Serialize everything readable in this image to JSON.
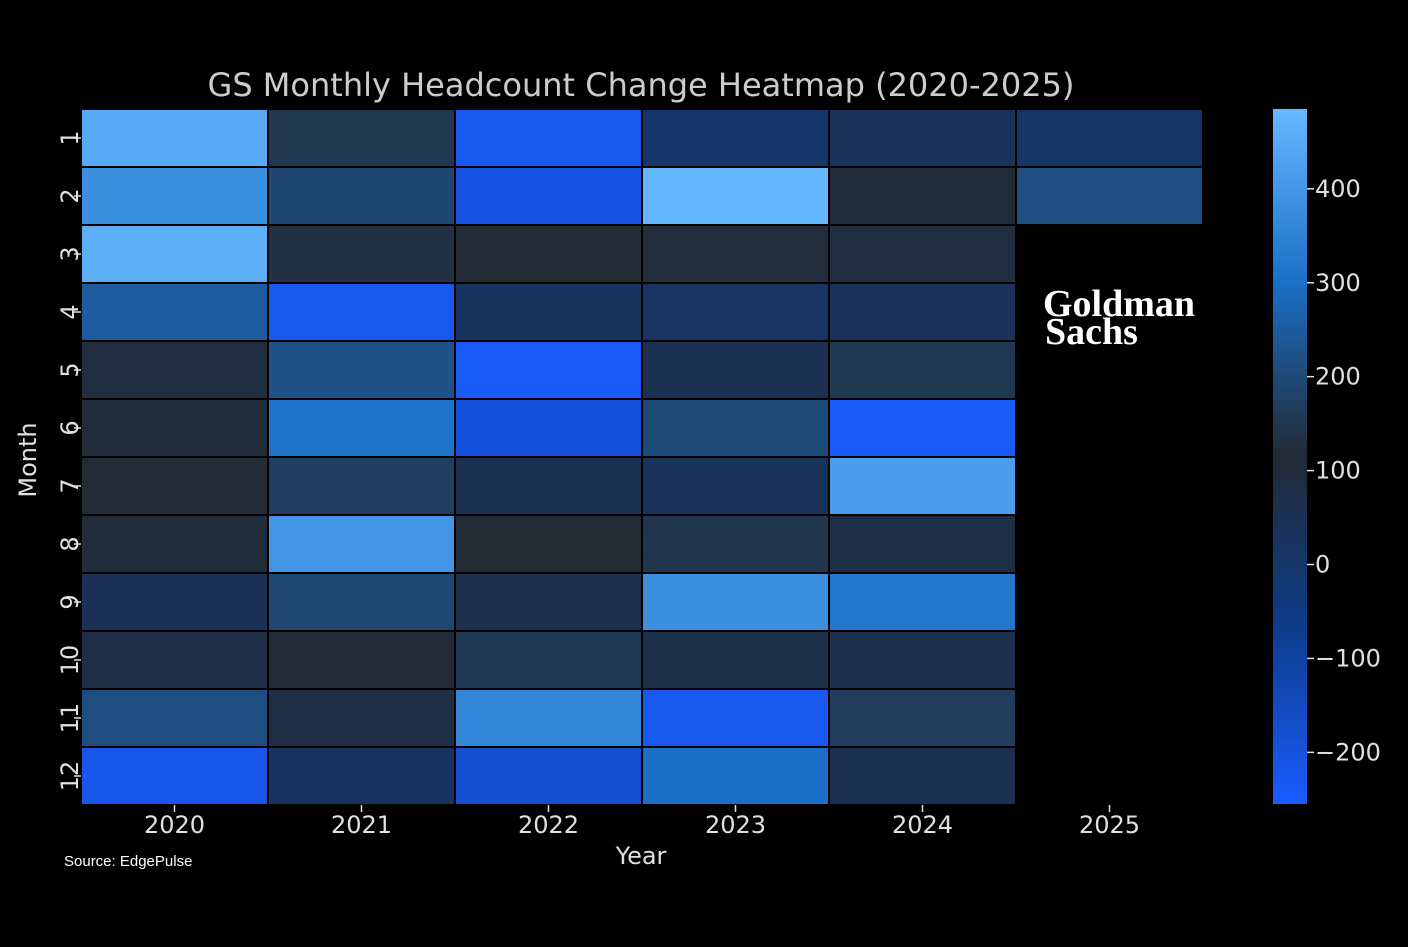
{
  "chart_data": {
    "type": "heatmap",
    "title": "GS Monthly Headcount Change Heatmap (2020-2025)",
    "xlabel": "Year",
    "ylabel": "Month",
    "x_categories": [
      "2020",
      "2021",
      "2022",
      "2023",
      "2024",
      "2025"
    ],
    "y_categories": [
      "1",
      "2",
      "3",
      "4",
      "5",
      "6",
      "7",
      "8",
      "9",
      "10",
      "11",
      "12"
    ],
    "values": [
      [
        450,
        150,
        -230,
        5,
        40,
        10
      ],
      [
        380,
        190,
        -210,
        480,
        100,
        210
      ],
      [
        460,
        135,
        120,
        125,
        90,
        null
      ],
      [
        250,
        -230,
        25,
        15,
        35,
        null
      ],
      [
        90,
        220,
        -240,
        55,
        155,
        null
      ],
      [
        100,
        310,
        -200,
        200,
        -240,
        null
      ],
      [
        120,
        170,
        55,
        35,
        420,
        null
      ],
      [
        100,
        400,
        115,
        145,
        80,
        null
      ],
      [
        45,
        195,
        60,
        380,
        320,
        null
      ],
      [
        80,
        110,
        155,
        70,
        60,
        null
      ],
      [
        210,
        80,
        360,
        -230,
        165,
        null
      ],
      [
        -220,
        20,
        -180,
        300,
        55,
        null
      ]
    ],
    "colorbar": {
      "vmin": -255,
      "vmax": 485,
      "ticks": [
        400,
        300,
        200,
        100,
        0,
        -100,
        -200
      ],
      "tick_labels": [
        "400",
        "300",
        "200",
        "100",
        "0",
        "−100",
        "−200"
      ],
      "colormap": [
        "#1a5cff",
        "#0d3d8c",
        "#222a33",
        "#1a6fc7",
        "#66b8ff"
      ]
    }
  },
  "source_note": "Source: EdgePulse",
  "logo": {
    "line1": "Goldman",
    "line2": "Sachs"
  }
}
